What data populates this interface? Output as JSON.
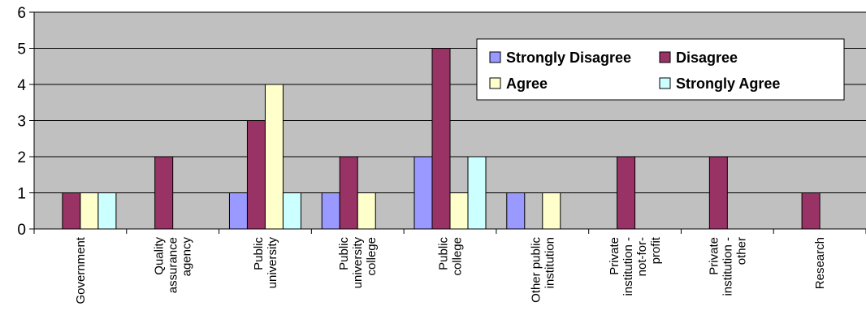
{
  "chart_data": {
    "type": "bar",
    "categories": [
      [
        "Government"
      ],
      [
        "Quality",
        "assurance",
        "agency"
      ],
      [
        "Public",
        "university"
      ],
      [
        "Public",
        "university",
        "college"
      ],
      [
        "Public",
        "college"
      ],
      [
        "Other public",
        "institution"
      ],
      [
        "Private",
        "institution -",
        "not-for-",
        "profit"
      ],
      [
        "Private",
        "institution -",
        "other"
      ],
      [
        "Research"
      ]
    ],
    "series": [
      {
        "name": "Strongly Disagree",
        "color": "#9999ff",
        "values": [
          0,
          0,
          1,
          1,
          2,
          1,
          0,
          0,
          0
        ]
      },
      {
        "name": "Disagree",
        "color": "#993366",
        "values": [
          1,
          2,
          3,
          2,
          5,
          0,
          2,
          2,
          1
        ]
      },
      {
        "name": "Agree",
        "color": "#ffffcc",
        "values": [
          1,
          0,
          4,
          1,
          1,
          1,
          0,
          0,
          0
        ]
      },
      {
        "name": "Strongly Agree",
        "color": "#ccffff",
        "values": [
          1,
          0,
          1,
          0,
          2,
          0,
          0,
          0,
          0
        ]
      }
    ],
    "ylim": [
      0,
      6
    ],
    "yticks": [
      0,
      1,
      2,
      3,
      4,
      5,
      6
    ],
    "grid": true,
    "plot_background": "#c0c0c0",
    "legend": {
      "position": "top-right",
      "columns": 2
    }
  }
}
